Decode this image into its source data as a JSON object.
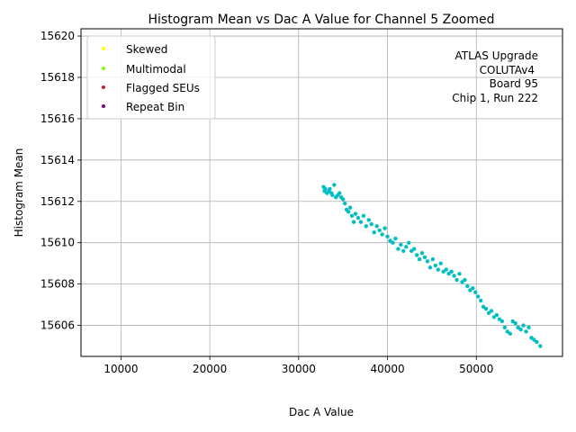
{
  "chart_data": {
    "type": "scatter",
    "title": "Histogram Mean vs Dac A Value for Channel 5 Zoomed",
    "xlabel": "Dac A Value",
    "ylabel": "Histogram Mean",
    "xlim": [
      5500,
      59700
    ],
    "ylim": [
      15604.5,
      15620.35
    ],
    "xticks": [
      10000,
      20000,
      30000,
      40000,
      50000
    ],
    "yticks": [
      15606,
      15608,
      15610,
      15612,
      15614,
      15616,
      15618,
      15620
    ],
    "grid": true,
    "legend_position": "top-left",
    "legend": [
      {
        "name": "Skewed",
        "color": "#ffff00"
      },
      {
        "name": "Multimodal",
        "color": "#7fff00"
      },
      {
        "name": "Flagged SEUs",
        "color": "#dc143c"
      },
      {
        "name": "Repeat Bin",
        "color": "#800080"
      }
    ],
    "annotation": [
      "ATLAS Upgrade",
      "COLUTAv4",
      "Board 95",
      "Chip 1, Run 222"
    ],
    "series": [
      {
        "name": "Data",
        "color": "#00bfc4",
        "x": [
          32800,
          32900,
          33000,
          33200,
          33400,
          33500,
          33700,
          33800,
          34000,
          34200,
          34400,
          34600,
          34800,
          35000,
          35200,
          35400,
          35600,
          35800,
          36000,
          36200,
          36400,
          36700,
          37000,
          37300,
          37600,
          37900,
          38200,
          38500,
          38800,
          39100,
          39400,
          39700,
          40000,
          40300,
          40600,
          40900,
          41200,
          41500,
          41800,
          42100,
          42400,
          42700,
          43000,
          43300,
          43600,
          43900,
          44200,
          44500,
          44800,
          45100,
          45400,
          45700,
          46000,
          46300,
          46600,
          46900,
          47200,
          47500,
          47800,
          48100,
          48400,
          48700,
          49000,
          49300,
          49600,
          49900,
          50200,
          50500,
          50800,
          51100,
          51400,
          51700,
          52000,
          52300,
          52600,
          52900,
          53200,
          53500,
          53800,
          54100,
          54400,
          54700,
          55000,
          55300,
          55600,
          55900,
          56200,
          56500,
          56800,
          57200
        ],
        "y": [
          15612.7,
          15612.5,
          15612.6,
          15612.4,
          15612.5,
          15612.6,
          15612.4,
          15612.3,
          15612.8,
          15612.2,
          15612.3,
          15612.4,
          15612.2,
          15612.1,
          15611.9,
          15611.6,
          15611.5,
          15611.7,
          15611.3,
          15611.0,
          15611.4,
          15611.2,
          15611.0,
          15611.3,
          15610.8,
          15611.1,
          15610.9,
          15610.5,
          15610.8,
          15610.6,
          15610.4,
          15610.7,
          15610.3,
          15610.1,
          15610.0,
          15610.2,
          15609.7,
          15609.9,
          15609.6,
          15609.8,
          15610.0,
          15609.6,
          15609.7,
          15609.4,
          15609.2,
          15609.5,
          15609.3,
          15609.1,
          15608.8,
          15609.2,
          15608.9,
          15608.7,
          15609.0,
          15608.6,
          15608.7,
          15608.5,
          15608.6,
          15608.4,
          15608.2,
          15608.5,
          15608.1,
          15608.2,
          15607.9,
          15607.7,
          15607.8,
          15607.6,
          15607.4,
          15607.2,
          15606.9,
          15606.8,
          15606.6,
          15606.7,
          15606.4,
          15606.5,
          15606.3,
          15606.2,
          15605.9,
          15605.7,
          15605.6,
          15606.2,
          15606.1,
          15605.9,
          15605.8,
          15606.0,
          15605.7,
          15605.9,
          15605.4,
          15605.3,
          15605.2,
          15605.0
        ]
      }
    ]
  }
}
